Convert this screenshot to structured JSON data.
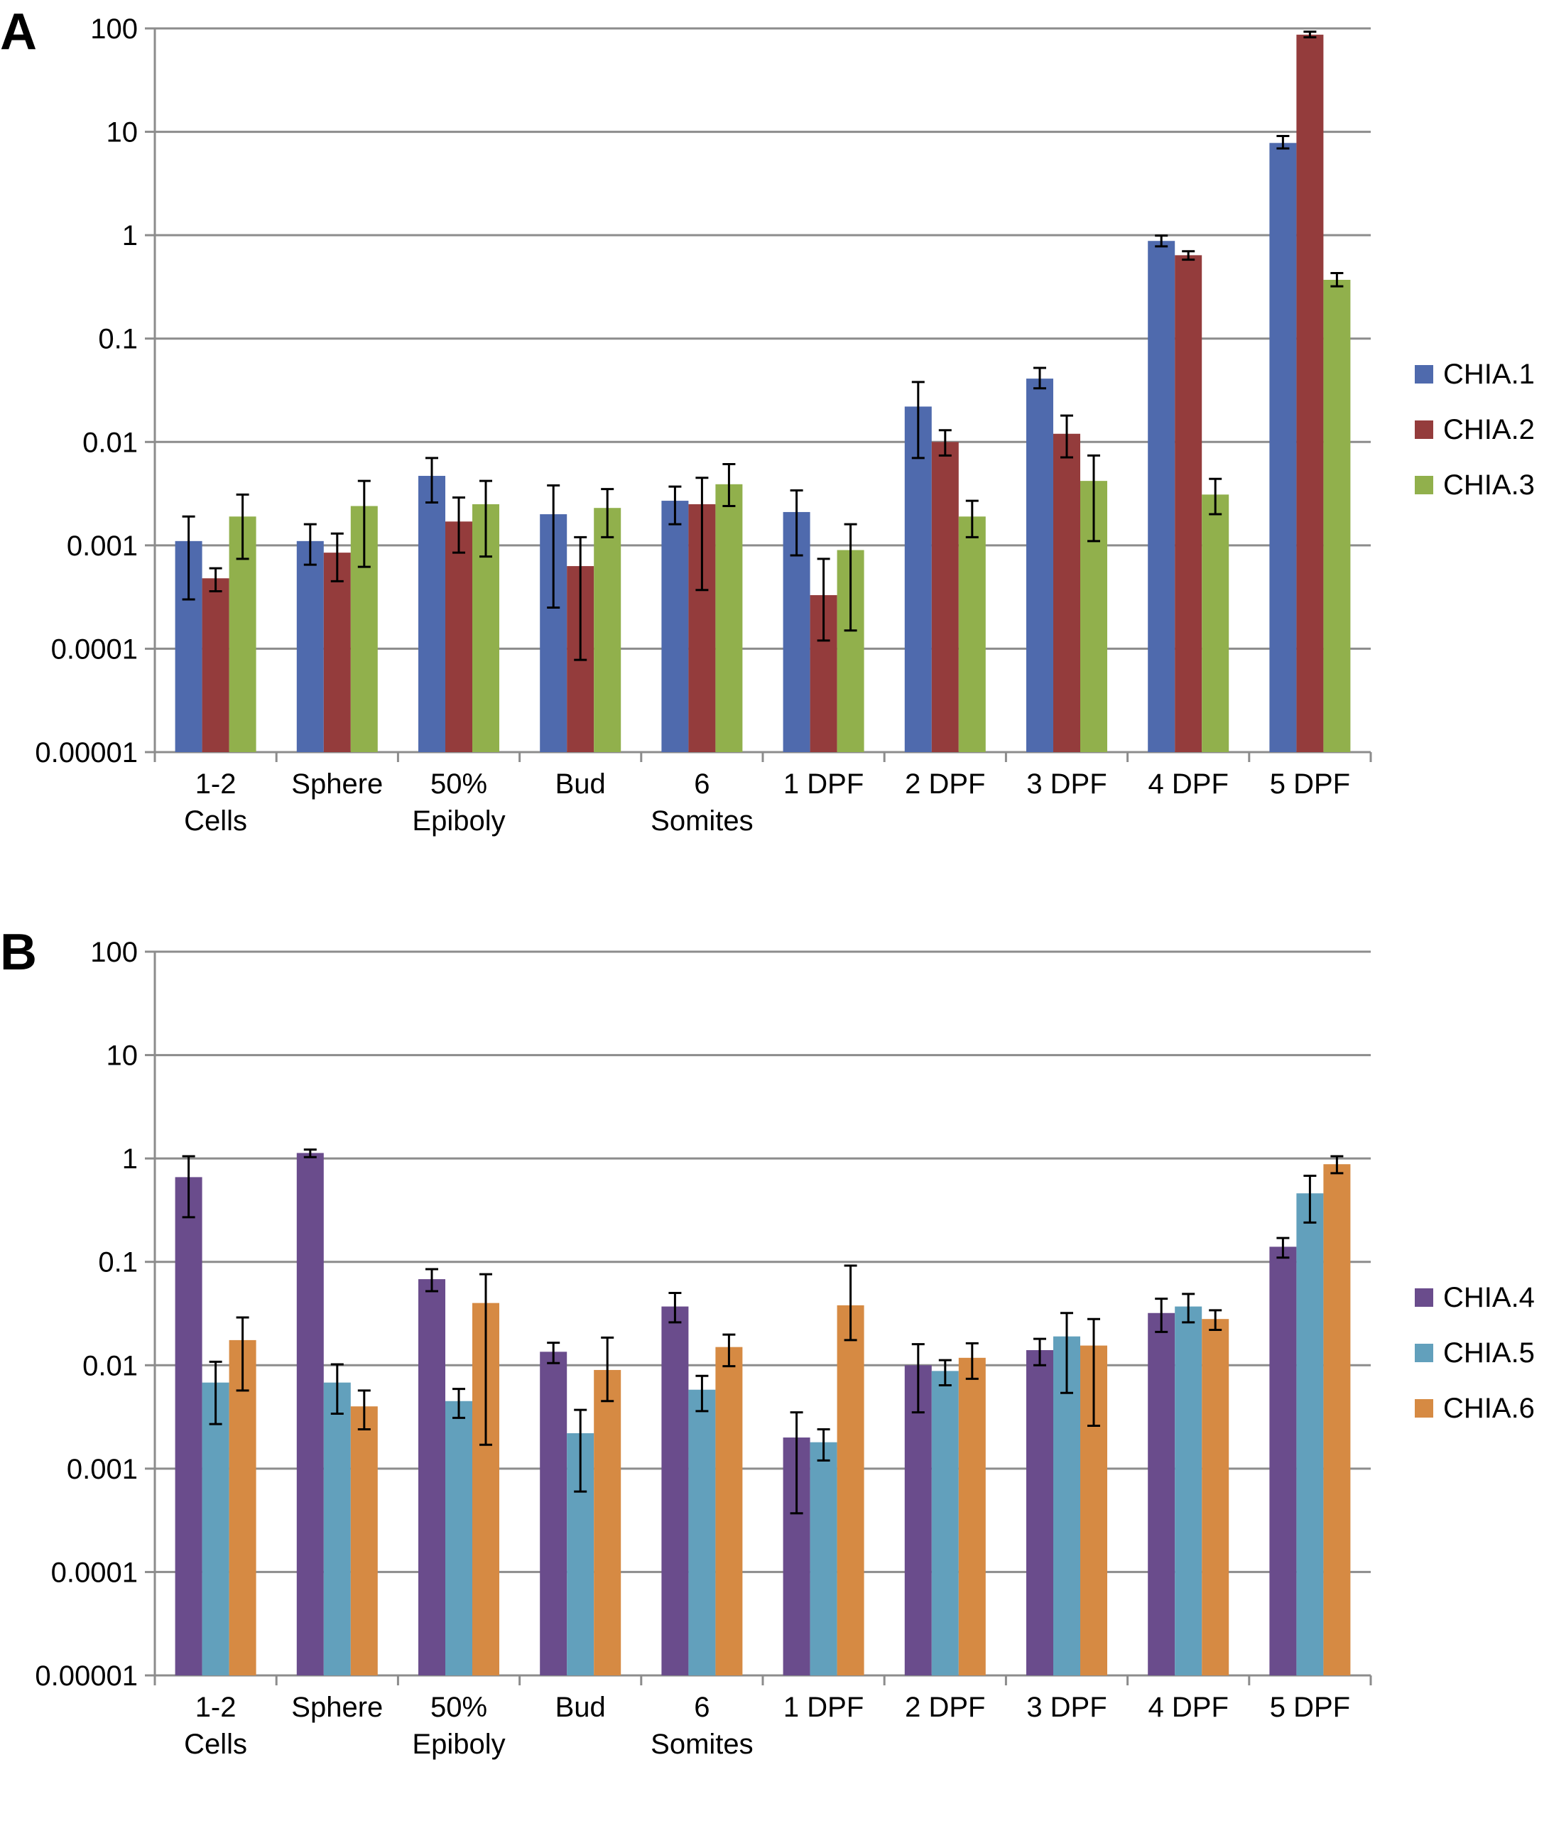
{
  "panels": {
    "a": {
      "letter": "A"
    },
    "b": {
      "letter": "B"
    }
  },
  "chart_data": [
    {
      "type": "bar",
      "panel": "A",
      "yscale": "log",
      "ylim": [
        1e-05,
        100
      ],
      "yticks": [
        "100",
        "10",
        "1",
        "0.1",
        "0.01",
        "0.001",
        "0.0001",
        "0.00001"
      ],
      "grid": true,
      "legend_position": "right",
      "categories": [
        [
          "1-2",
          "Cells"
        ],
        [
          "Sphere"
        ],
        [
          "50%",
          "Epiboly"
        ],
        [
          "Bud"
        ],
        [
          "6",
          "Somites"
        ],
        [
          "1 DPF"
        ],
        [
          "2 DPF"
        ],
        [
          "3 DPF"
        ],
        [
          "4 DPF"
        ],
        [
          "5 DPF"
        ]
      ],
      "series": [
        {
          "name": "CHIA.1",
          "color": "#4f6aad",
          "values": [
            0.0011,
            0.0011,
            0.0047,
            0.002,
            0.0027,
            0.0021,
            0.022,
            0.041,
            0.88,
            7.8
          ],
          "err_low": [
            0.0003,
            0.00065,
            0.0026,
            0.00025,
            0.0016,
            0.0008,
            0.007,
            0.033,
            0.78,
            6.9
          ],
          "err_high": [
            0.0019,
            0.0016,
            0.007,
            0.0038,
            0.0037,
            0.0034,
            0.038,
            0.052,
            0.99,
            9.1
          ]
        },
        {
          "name": "CHIA.2",
          "color": "#943c3c",
          "values": [
            0.00048,
            0.00085,
            0.0017,
            0.00063,
            0.0025,
            0.00033,
            0.01,
            0.012,
            0.64,
            87
          ],
          "err_low": [
            0.00036,
            0.00045,
            0.00085,
            7.8e-05,
            0.00037,
            0.00012,
            0.0074,
            0.0071,
            0.58,
            82
          ],
          "err_high": [
            0.0006,
            0.0013,
            0.0029,
            0.0012,
            0.0045,
            0.00074,
            0.013,
            0.018,
            0.7,
            93
          ]
        },
        {
          "name": "CHIA.3",
          "color": "#91b04c",
          "values": [
            0.0019,
            0.0024,
            0.0025,
            0.0023,
            0.0039,
            0.0009,
            0.0019,
            0.0042,
            0.0031,
            0.37
          ],
          "err_low": [
            0.00074,
            0.00062,
            0.00078,
            0.0012,
            0.0024,
            0.00015,
            0.0012,
            0.0011,
            0.002,
            0.32
          ],
          "err_high": [
            0.0031,
            0.0042,
            0.0042,
            0.0035,
            0.0061,
            0.0016,
            0.0027,
            0.0074,
            0.0044,
            0.43
          ]
        }
      ]
    },
    {
      "type": "bar",
      "panel": "B",
      "yscale": "log",
      "ylim": [
        1e-05,
        100
      ],
      "yticks": [
        "100",
        "10",
        "1",
        "0.1",
        "0.01",
        "0.001",
        "0.0001",
        "0.00001"
      ],
      "grid": true,
      "legend_position": "right",
      "categories": [
        [
          "1-2",
          "Cells"
        ],
        [
          "Sphere"
        ],
        [
          "50%",
          "Epiboly"
        ],
        [
          "Bud"
        ],
        [
          "6",
          "Somites"
        ],
        [
          "1 DPF"
        ],
        [
          "2 DPF"
        ],
        [
          "3 DPF"
        ],
        [
          "4 DPF"
        ],
        [
          "5 DPF"
        ]
      ],
      "series": [
        {
          "name": "CHIA.4",
          "color": "#6a4c8c",
          "values": [
            0.66,
            1.13,
            0.068,
            0.0135,
            0.037,
            0.002,
            0.01,
            0.014,
            0.032,
            0.14
          ],
          "err_low": [
            0.27,
            1.03,
            0.052,
            0.0105,
            0.026,
            0.00037,
            0.0035,
            0.01,
            0.021,
            0.11
          ],
          "err_high": [
            1.05,
            1.22,
            0.085,
            0.0165,
            0.05,
            0.0035,
            0.016,
            0.018,
            0.044,
            0.17
          ]
        },
        {
          "name": "CHIA.5",
          "color": "#62a0bc",
          "values": [
            0.0068,
            0.0068,
            0.0045,
            0.0022,
            0.0058,
            0.0018,
            0.0088,
            0.019,
            0.037,
            0.46
          ],
          "err_low": [
            0.0027,
            0.0034,
            0.0031,
            0.0006,
            0.0036,
            0.0012,
            0.0064,
            0.0054,
            0.026,
            0.24
          ],
          "err_high": [
            0.0108,
            0.0102,
            0.0059,
            0.0037,
            0.0079,
            0.0024,
            0.0112,
            0.032,
            0.049,
            0.68
          ]
        },
        {
          "name": "CHIA.6",
          "color": "#d68a43",
          "values": [
            0.0175,
            0.004,
            0.04,
            0.009,
            0.015,
            0.038,
            0.0118,
            0.0155,
            0.028,
            0.88
          ],
          "err_low": [
            0.0057,
            0.0024,
            0.0017,
            0.0045,
            0.0098,
            0.0175,
            0.0074,
            0.0026,
            0.022,
            0.72
          ],
          "err_high": [
            0.029,
            0.0057,
            0.076,
            0.0185,
            0.0198,
            0.092,
            0.0163,
            0.028,
            0.034,
            1.05
          ]
        }
      ]
    }
  ]
}
